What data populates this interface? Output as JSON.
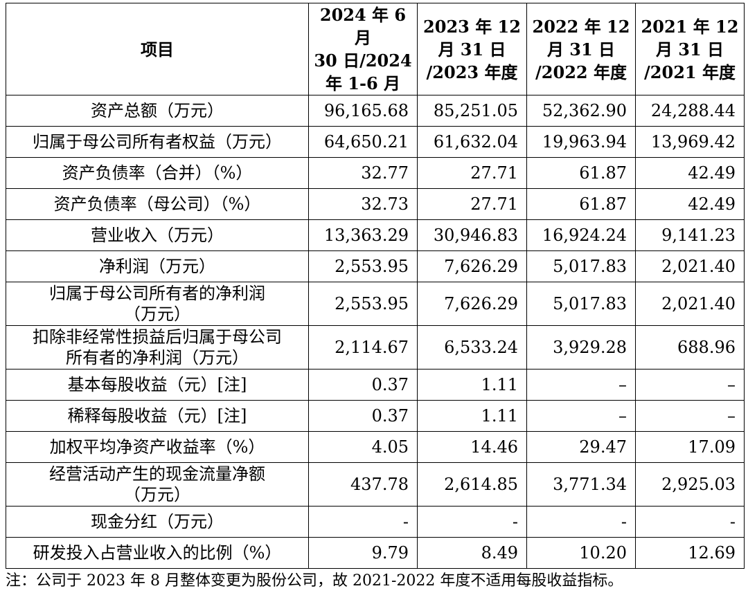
{
  "table": {
    "headers": [
      {
        "lines": [
          "项目"
        ]
      },
      {
        "lines": [
          "2024 年 6 月",
          "30 日/2024",
          "年 1-6 月"
        ]
      },
      {
        "lines": [
          "2023 年 12",
          "月 31 日",
          "/2023 年度"
        ]
      },
      {
        "lines": [
          "2022 年 12",
          "月 31 日",
          "/2022 年度"
        ]
      },
      {
        "lines": [
          "2021 年 12",
          "月 31 日",
          "/2021 年度"
        ]
      }
    ],
    "rows": [
      {
        "label": [
          "资产总额（万元）"
        ],
        "values": [
          "96,165.68",
          "85,251.05",
          "52,362.90",
          "24,288.44"
        ]
      },
      {
        "label": [
          "归属于母公司所有者权益（万元）"
        ],
        "values": [
          "64,650.21",
          "61,632.04",
          "19,963.94",
          "13,969.42"
        ]
      },
      {
        "label": [
          "资产负债率（合并）（%）"
        ],
        "values": [
          "32.77",
          "27.71",
          "61.87",
          "42.49"
        ]
      },
      {
        "label": [
          "资产负债率（母公司）（%）"
        ],
        "values": [
          "32.73",
          "27.71",
          "61.87",
          "42.49"
        ]
      },
      {
        "label": [
          "营业收入（万元）"
        ],
        "values": [
          "13,363.29",
          "30,946.83",
          "16,924.24",
          "9,141.23"
        ]
      },
      {
        "label": [
          "净利润（万元）"
        ],
        "values": [
          "2,553.95",
          "7,626.29",
          "5,017.83",
          "2,021.40"
        ]
      },
      {
        "label": [
          "归属于母公司所有者的净利润",
          "（万元）"
        ],
        "values": [
          "2,553.95",
          "7,626.29",
          "5,017.83",
          "2,021.40"
        ]
      },
      {
        "label": [
          "扣除非经常性损益后归属于母公司",
          "所有者的净利润（万元）"
        ],
        "values": [
          "2,114.67",
          "6,533.24",
          "3,929.28",
          "688.96"
        ]
      },
      {
        "label": [
          "基本每股收益（元）[注]"
        ],
        "values": [
          "0.37",
          "1.11",
          "–",
          "–"
        ]
      },
      {
        "label": [
          "稀释每股收益（元）[注]"
        ],
        "values": [
          "0.37",
          "1.11",
          "–",
          "–"
        ]
      },
      {
        "label": [
          "加权平均净资产收益率（%）"
        ],
        "values": [
          "4.05",
          "14.46",
          "29.47",
          "17.09"
        ]
      },
      {
        "label": [
          "经营活动产生的现金流量净额",
          "（万元）"
        ],
        "values": [
          "437.78",
          "2,614.85",
          "3,771.34",
          "2,925.03"
        ]
      },
      {
        "label": [
          "现金分红（万元）"
        ],
        "values": [
          "-",
          "-",
          "-",
          "-"
        ]
      },
      {
        "label": [
          "研发投入占营业收入的比例（%）"
        ],
        "values": [
          "9.79",
          "8.49",
          "10.20",
          "12.69"
        ]
      }
    ]
  },
  "footnote": "注：公司于 2023 年 8 月整体变更为股份公司，故 2021-2022 年度不适用每股收益指标。"
}
